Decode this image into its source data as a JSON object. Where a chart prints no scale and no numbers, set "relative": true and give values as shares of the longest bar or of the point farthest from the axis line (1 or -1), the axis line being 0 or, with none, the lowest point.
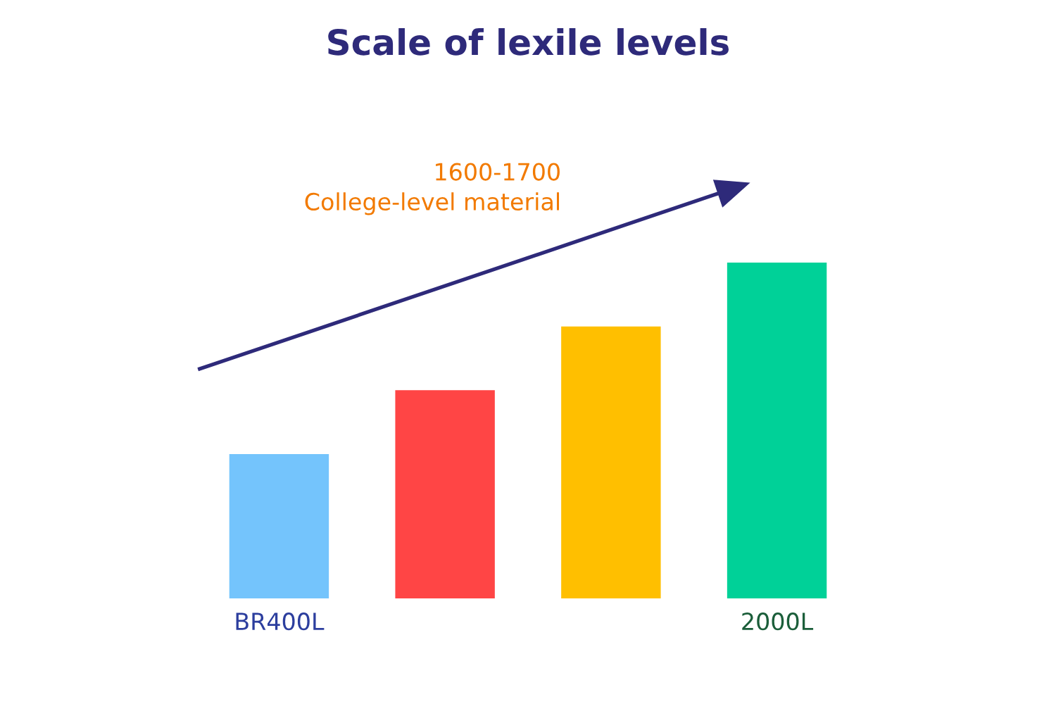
{
  "chart_data": {
    "type": "bar",
    "title": "Scale of lexile levels",
    "categories": [
      "BR400L",
      null,
      null,
      "2000L"
    ],
    "values": [
      0.43,
      0.62,
      0.81,
      1
    ],
    "colors": [
      "#74c4fc",
      "#ff4545",
      "#ffbf00",
      "#00d198"
    ],
    "relative": true,
    "annotations": [
      "1600-1700\nCollege-level material"
    ]
  }
}
